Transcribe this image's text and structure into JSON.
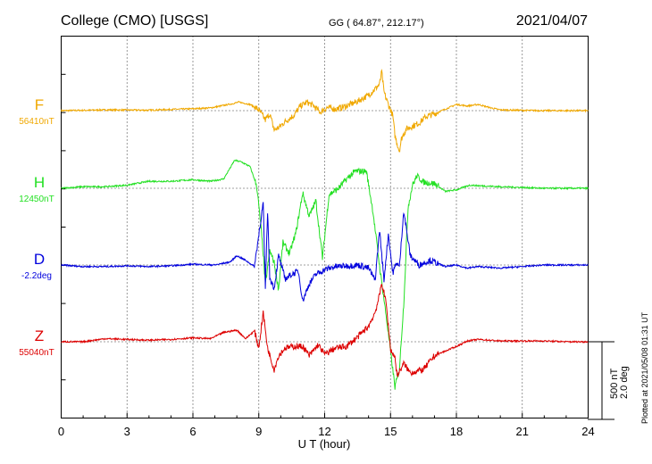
{
  "header": {
    "station": "College (CMO)  [USGS]",
    "coords": "GG ( 64.87°, 212.17°)",
    "date": "2021/04/07"
  },
  "plot_note": "Plotted at 2021/05/08 01:31  UT",
  "scale_bar": {
    "line1": "500 nT",
    "line2": "2.0 deg"
  },
  "chart_data": {
    "type": "line",
    "xlabel": "U T (hour)",
    "xlim": [
      0,
      24
    ],
    "xticks": [
      "0",
      "3",
      "6",
      "9",
      "12",
      "15",
      "18",
      "21",
      "24"
    ],
    "grid": true,
    "scale_nT_per_bar": 500,
    "scale_deg_per_bar": 2.0,
    "series": [
      {
        "name": "F",
        "baseline": "56410nT",
        "color": "#f0a800",
        "x": [
          0,
          1,
          2,
          3,
          4,
          5,
          6,
          6.8,
          7.2,
          7.8,
          8.1,
          8.6,
          9.0,
          9.3,
          9.5,
          9.7,
          9.9,
          10.2,
          10.6,
          10.9,
          11.2,
          11.5,
          11.8,
          12.1,
          12.5,
          13.0,
          13.5,
          14.0,
          14.3,
          14.5,
          14.6,
          14.7,
          14.9,
          15.1,
          15.2,
          15.4,
          15.5,
          15.7,
          16.0,
          16.3,
          16.6,
          17.0,
          17.5,
          18.0,
          18.5,
          19.0,
          19.5,
          20,
          21,
          22,
          23,
          24
        ],
        "values": [
          0,
          2,
          5,
          4,
          3,
          8,
          12,
          18,
          28,
          45,
          55,
          40,
          5,
          -60,
          -20,
          -125,
          -110,
          -70,
          -30,
          30,
          55,
          30,
          -10,
          20,
          10,
          30,
          60,
          100,
          140,
          170,
          250,
          120,
          40,
          -30,
          -160,
          -260,
          -180,
          -120,
          -100,
          -80,
          -40,
          -20,
          10,
          40,
          30,
          40,
          20,
          5,
          2,
          0,
          0,
          0
        ]
      },
      {
        "name": "H",
        "baseline": "12450nT",
        "color": "#22e022",
        "x": [
          0,
          1,
          2,
          3,
          4,
          5,
          6,
          6.8,
          7.4,
          7.9,
          8.2,
          8.6,
          8.9,
          9.1,
          9.2,
          9.3,
          9.5,
          9.7,
          9.9,
          10.1,
          10.4,
          10.7,
          11.0,
          11.3,
          11.6,
          11.9,
          12.2,
          12.6,
          13.0,
          13.4,
          13.9,
          14.2,
          14.5,
          14.8,
          15.0,
          15.2,
          15.4,
          15.6,
          15.8,
          16.0,
          16.2,
          16.5,
          17.0,
          17.5,
          18.0,
          18.6,
          19.2,
          20,
          21,
          22,
          23,
          24
        ],
        "values": [
          0,
          10,
          10,
          20,
          45,
          45,
          55,
          45,
          60,
          180,
          170,
          140,
          20,
          -250,
          -420,
          -620,
          -400,
          -480,
          -650,
          -350,
          -420,
          -280,
          -30,
          -180,
          -80,
          -450,
          -40,
          -5,
          60,
          110,
          110,
          -150,
          -500,
          -820,
          -1050,
          -1280,
          -1170,
          -750,
          -120,
          20,
          80,
          40,
          30,
          -20,
          -10,
          20,
          15,
          10,
          5,
          0,
          0,
          0
        ]
      },
      {
        "name": "D",
        "baseline": "-2.2deg",
        "color": "#0000dd",
        "x": [
          0,
          1,
          2,
          3,
          4,
          5,
          6,
          7,
          7.7,
          8.0,
          8.4,
          8.8,
          9.2,
          9.3,
          9.4,
          9.5,
          9.7,
          9.9,
          10.2,
          10.5,
          10.8,
          11.0,
          11.3,
          11.6,
          12.0,
          12.5,
          13.0,
          13.5,
          14.0,
          14.3,
          14.5,
          14.7,
          14.9,
          15.1,
          15.3,
          15.4,
          15.6,
          15.9,
          16.3,
          16.8,
          17.5,
          18.0,
          18.5,
          19,
          20,
          21,
          22,
          23,
          24
        ],
        "values": [
          0,
          -10,
          -10,
          -5,
          -10,
          -5,
          5,
          0,
          20,
          60,
          30,
          -10,
          400,
          -150,
          350,
          -80,
          -150,
          60,
          -90,
          -60,
          -40,
          -230,
          -120,
          -60,
          -30,
          -10,
          -5,
          0,
          -20,
          -100,
          230,
          -100,
          200,
          -50,
          20,
          -20,
          350,
          60,
          0,
          30,
          -10,
          0,
          -20,
          -10,
          -20,
          -10,
          0,
          0,
          0
        ]
      },
      {
        "name": "Z",
        "baseline": "55040nT",
        "color": "#dd0000",
        "x": [
          0,
          1,
          2,
          3,
          4,
          5,
          6,
          6.8,
          7.4,
          8.0,
          8.4,
          8.8,
          9.0,
          9.2,
          9.4,
          9.7,
          9.9,
          10.2,
          10.6,
          11.0,
          11.3,
          11.7,
          12.0,
          12.5,
          13.0,
          13.5,
          14.0,
          14.3,
          14.5,
          14.6,
          14.8,
          15.0,
          15.2,
          15.3,
          15.6,
          15.9,
          16.2,
          16.5,
          17.0,
          17.5,
          18.0,
          18.5,
          19.0,
          19.5,
          20,
          21,
          22,
          23,
          24
        ],
        "values": [
          0,
          0,
          20,
          15,
          10,
          15,
          25,
          20,
          60,
          75,
          20,
          70,
          -40,
          190,
          -40,
          -180,
          -90,
          -40,
          -30,
          -30,
          -90,
          -20,
          -80,
          -40,
          -30,
          30,
          100,
          190,
          300,
          380,
          250,
          -50,
          -100,
          -220,
          -140,
          -200,
          -190,
          -180,
          -90,
          -60,
          -30,
          5,
          15,
          10,
          5,
          5,
          5,
          0,
          0
        ]
      }
    ]
  }
}
